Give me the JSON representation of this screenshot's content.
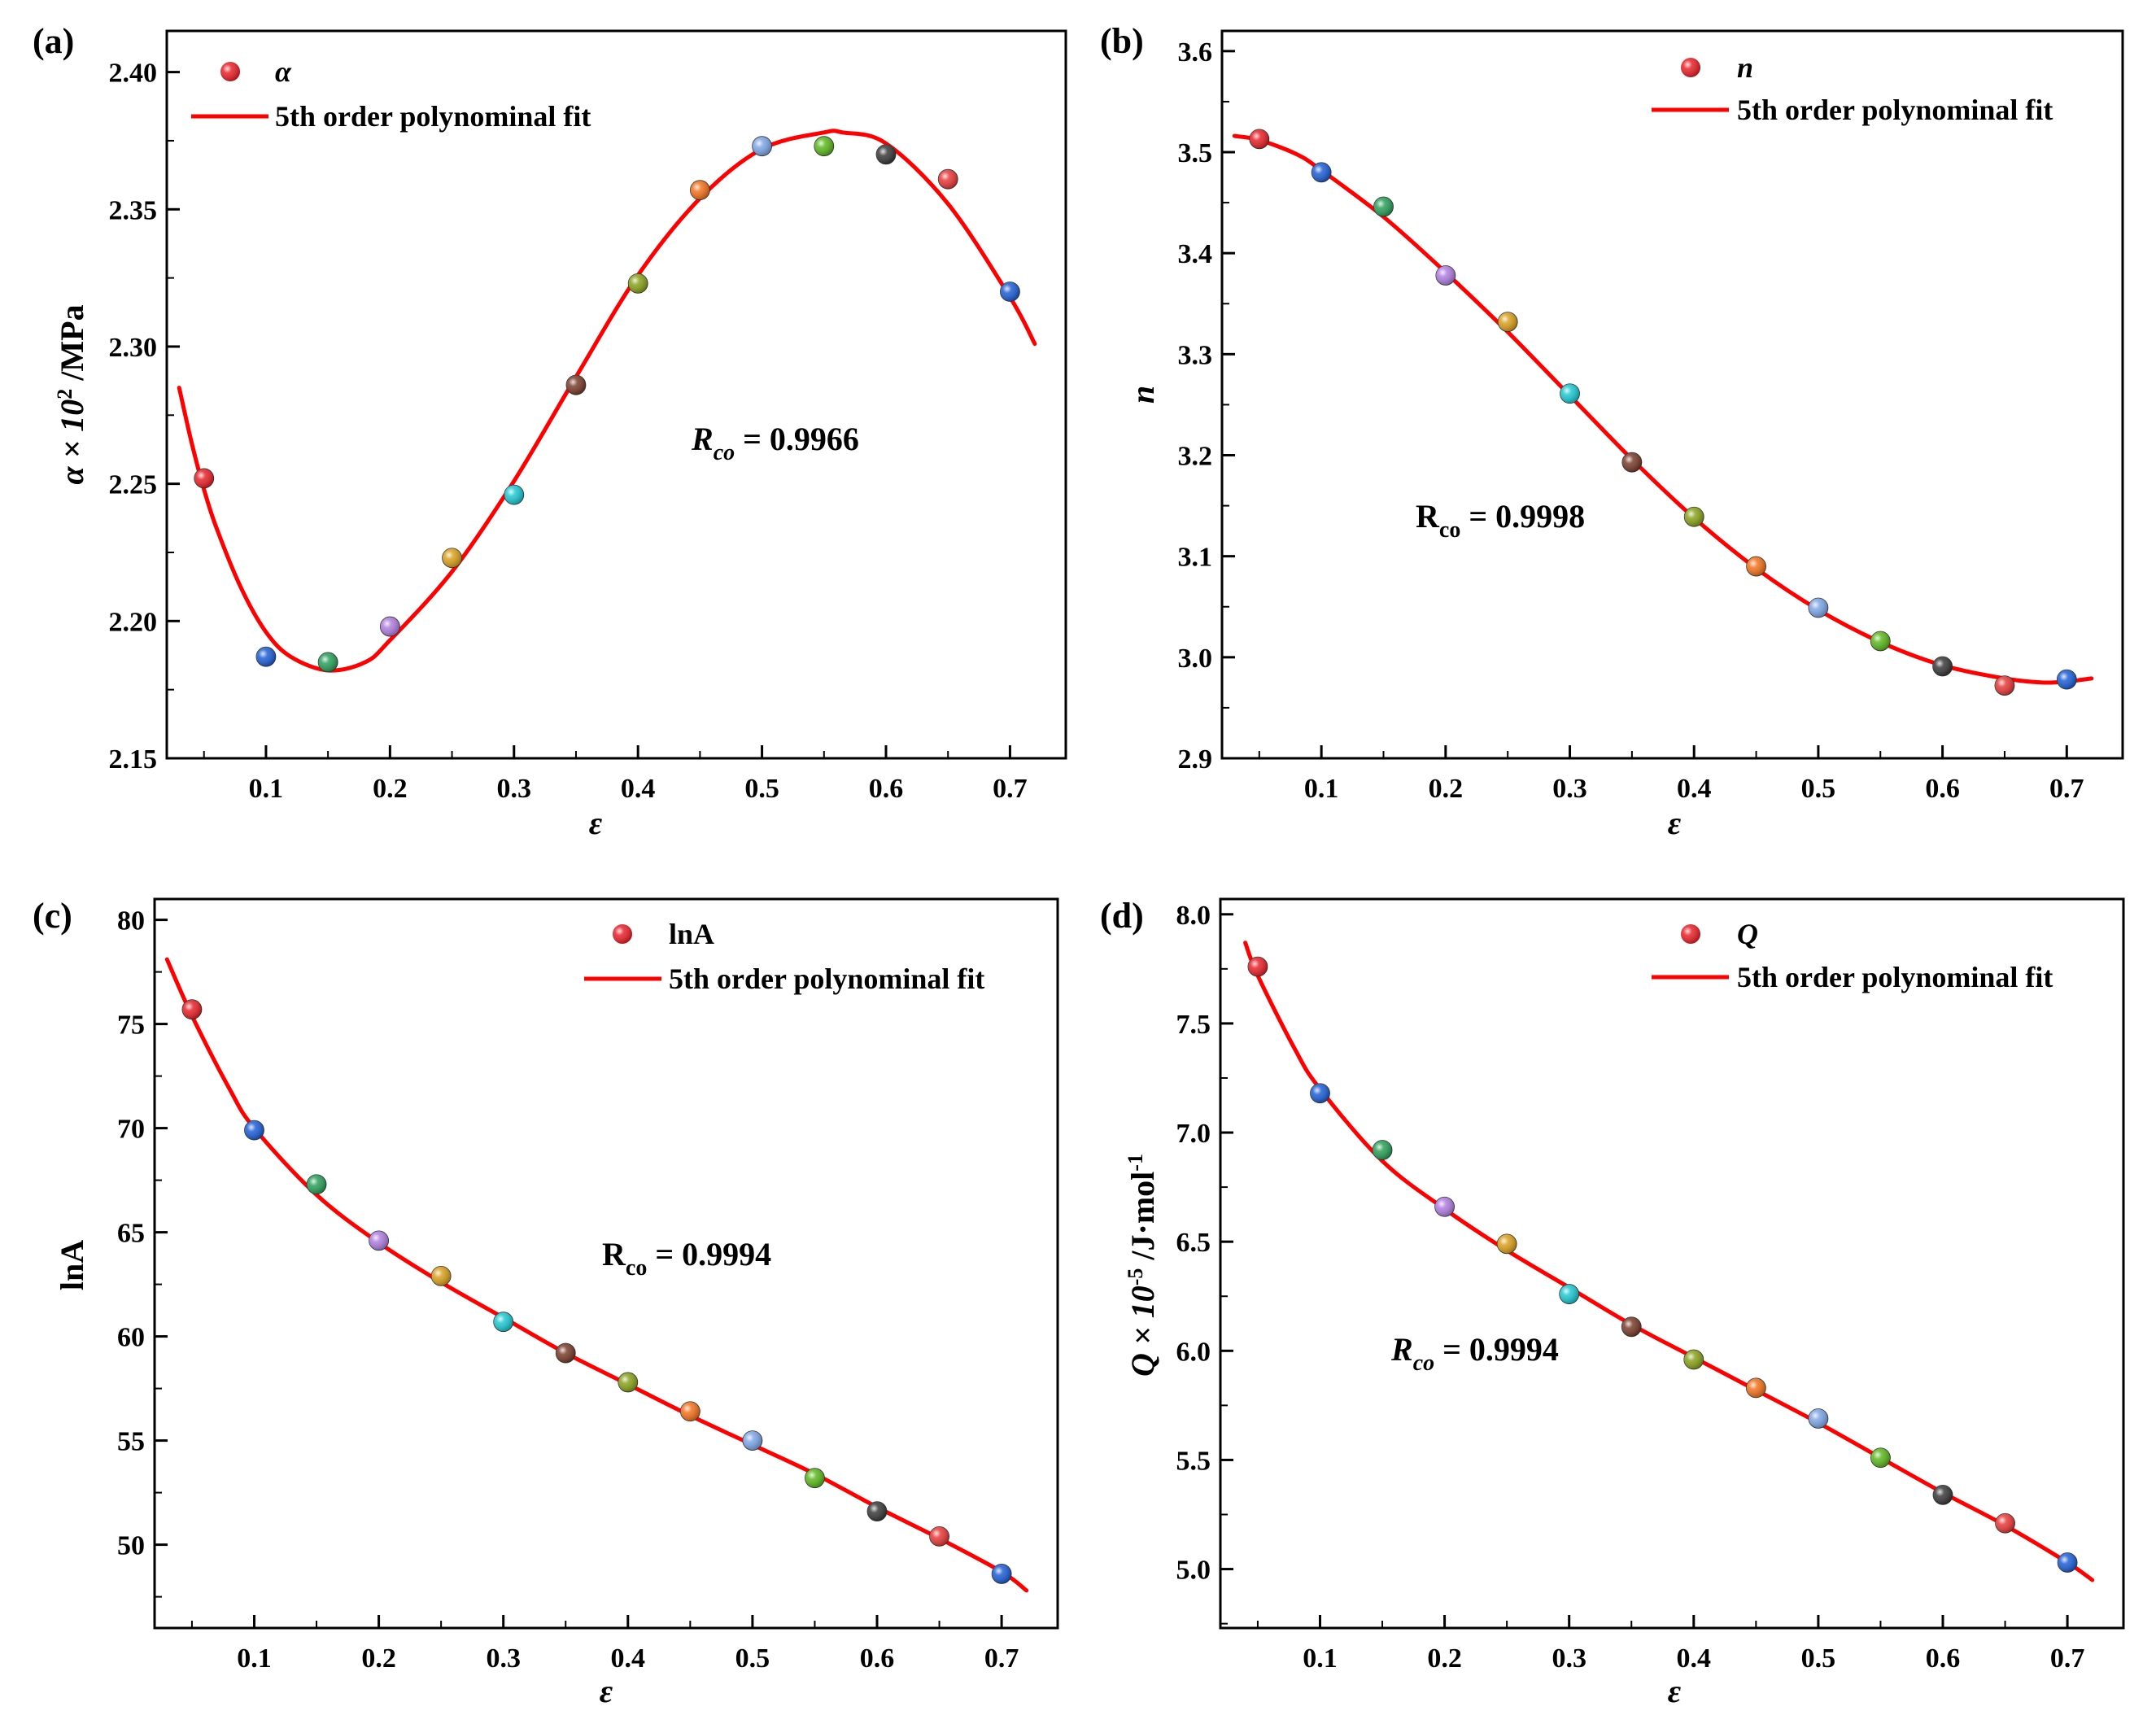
{
  "figure": {
    "point_colors": [
      "#e8232a",
      "#1f5fd6",
      "#2aa05a",
      "#b07ee0",
      "#d9a01e",
      "#1ec8d2",
      "#7a3d2c",
      "#8aa21c",
      "#f2731e",
      "#7ea6e6",
      "#5cb81e",
      "#3a3a3a",
      "#e83a3a",
      "#1f5fd6"
    ],
    "fit_color": "#ff0000"
  },
  "chart_data": [
    {
      "id": "a",
      "type": "scatter",
      "panel_label": "(a)",
      "legend": {
        "marker_label": "α",
        "line_label": "5th order polynominal fit"
      },
      "xlabel": "ε",
      "ylabel": {
        "main": "α × 10",
        "sup": "2",
        "unit": " /MPa"
      },
      "rco": {
        "R": "R",
        "sub": "co",
        "value": " = 0.9966",
        "italic": true
      },
      "xlim": [
        0.02,
        0.745
      ],
      "ylim": [
        2.15,
        2.415
      ],
      "xticks": [
        0.1,
        0.2,
        0.3,
        0.4,
        0.5,
        0.6,
        0.7
      ],
      "xtick_labels": [
        "0.1",
        "0.2",
        "0.3",
        "0.4",
        "0.5",
        "0.6",
        "0.7"
      ],
      "yticks": [
        2.15,
        2.2,
        2.25,
        2.3,
        2.35,
        2.4
      ],
      "ytick_labels": [
        "2.15",
        "2.20",
        "2.25",
        "2.30",
        "2.35",
        "2.40"
      ],
      "x": [
        0.05,
        0.1,
        0.15,
        0.2,
        0.25,
        0.3,
        0.35,
        0.4,
        0.45,
        0.5,
        0.55,
        0.6,
        0.65,
        0.7
      ],
      "y": [
        2.252,
        2.187,
        2.185,
        2.198,
        2.223,
        2.246,
        2.286,
        2.323,
        2.357,
        2.373,
        2.373,
        2.37,
        2.361,
        2.32
      ],
      "fit_x": [
        0.03,
        0.04,
        0.05,
        0.06,
        0.08,
        0.1,
        0.12,
        0.15,
        0.18,
        0.2,
        0.25,
        0.3,
        0.35,
        0.4,
        0.45,
        0.5,
        0.55,
        0.565,
        0.6,
        0.65,
        0.7,
        0.72
      ],
      "fit_y": [
        2.285,
        2.265,
        2.248,
        2.234,
        2.212,
        2.196,
        2.187,
        2.182,
        2.185,
        2.193,
        2.218,
        2.251,
        2.289,
        2.326,
        2.354,
        2.372,
        2.378,
        2.378,
        2.374,
        2.352,
        2.318,
        2.301
      ]
    },
    {
      "id": "b",
      "type": "scatter",
      "panel_label": "(b)",
      "legend": {
        "marker_label": "n",
        "line_label": "5th order polynominal fit"
      },
      "xlabel": "ε",
      "ylabel": {
        "main": "n",
        "sup": "",
        "unit": ""
      },
      "rco": {
        "R": "R",
        "sub": "co",
        "value": " = 0.9998",
        "italic": false
      },
      "xlim": [
        0.02,
        0.745
      ],
      "ylim": [
        2.9,
        3.62
      ],
      "xticks": [
        0.1,
        0.2,
        0.3,
        0.4,
        0.5,
        0.6,
        0.7
      ],
      "xtick_labels": [
        "0.1",
        "0.2",
        "0.3",
        "0.4",
        "0.5",
        "0.6",
        "0.7"
      ],
      "yticks": [
        2.9,
        3.0,
        3.1,
        3.2,
        3.3,
        3.4,
        3.5,
        3.6
      ],
      "ytick_labels": [
        "2.9",
        "3.0",
        "3.1",
        "3.2",
        "3.3",
        "3.4",
        "3.5",
        "3.6"
      ],
      "x": [
        0.05,
        0.1,
        0.15,
        0.2,
        0.25,
        0.3,
        0.35,
        0.4,
        0.45,
        0.5,
        0.55,
        0.6,
        0.65,
        0.7
      ],
      "y": [
        3.513,
        3.48,
        3.446,
        3.378,
        3.332,
        3.261,
        3.193,
        3.139,
        3.09,
        3.049,
        3.016,
        2.991,
        2.972,
        2.978
      ],
      "fit_x": [
        0.03,
        0.05,
        0.08,
        0.1,
        0.15,
        0.2,
        0.25,
        0.3,
        0.35,
        0.4,
        0.45,
        0.5,
        0.55,
        0.6,
        0.65,
        0.68,
        0.7,
        0.72
      ],
      "fit_y": [
        3.516,
        3.512,
        3.498,
        3.482,
        3.436,
        3.381,
        3.322,
        3.259,
        3.196,
        3.138,
        3.088,
        3.047,
        3.015,
        2.992,
        2.979,
        2.975,
        2.976,
        2.979
      ]
    },
    {
      "id": "c",
      "type": "scatter",
      "panel_label": "(c)",
      "legend": {
        "marker_label": "lnA",
        "line_label": "5th order polynominal fit"
      },
      "xlabel": "ε",
      "ylabel": {
        "main": "lnA",
        "sup": "",
        "unit": ""
      },
      "rco": {
        "R": "R",
        "sub": "co",
        "value": " = 0.9994",
        "italic": false
      },
      "xlim": [
        0.02,
        0.745
      ],
      "ylim": [
        46,
        81
      ],
      "xticks": [
        0.1,
        0.2,
        0.3,
        0.4,
        0.5,
        0.6,
        0.7
      ],
      "xtick_labels": [
        "0.1",
        "0.2",
        "0.3",
        "0.4",
        "0.5",
        "0.6",
        "0.7"
      ],
      "yticks": [
        50,
        55,
        60,
        65,
        70,
        75,
        80
      ],
      "ytick_labels": [
        "50",
        "55",
        "60",
        "65",
        "70",
        "75",
        "80"
      ],
      "x": [
        0.05,
        0.1,
        0.15,
        0.2,
        0.25,
        0.3,
        0.35,
        0.4,
        0.45,
        0.5,
        0.55,
        0.6,
        0.65,
        0.7
      ],
      "y": [
        75.7,
        69.9,
        67.3,
        64.6,
        62.9,
        60.7,
        59.2,
        57.8,
        56.4,
        55.0,
        53.2,
        51.6,
        50.4,
        48.6
      ],
      "fit_x": [
        0.03,
        0.05,
        0.08,
        0.1,
        0.15,
        0.2,
        0.25,
        0.3,
        0.35,
        0.4,
        0.45,
        0.5,
        0.55,
        0.6,
        0.65,
        0.7,
        0.72
      ],
      "fit_y": [
        78.1,
        75.4,
        71.9,
        70.0,
        66.8,
        64.5,
        62.6,
        60.9,
        59.2,
        57.7,
        56.2,
        54.8,
        53.4,
        51.8,
        50.3,
        48.7,
        47.8
      ]
    },
    {
      "id": "d",
      "type": "scatter",
      "panel_label": "(d)",
      "legend": {
        "marker_label": "Q",
        "line_label": "5th order polynominal fit"
      },
      "xlabel": "ε",
      "ylabel": {
        "main": "Q × 10",
        "sup": "-5",
        "unit": " /J·mol",
        "sup2": "-1"
      },
      "rco": {
        "R": "R",
        "sub": "co",
        "value": " = 0.9994",
        "italic": true
      },
      "xlim": [
        0.02,
        0.745
      ],
      "ylim": [
        4.73,
        8.07
      ],
      "xticks": [
        0.1,
        0.2,
        0.3,
        0.4,
        0.5,
        0.6,
        0.7
      ],
      "xtick_labels": [
        "0.1",
        "0.2",
        "0.3",
        "0.4",
        "0.5",
        "0.6",
        "0.7"
      ],
      "yticks": [
        5.0,
        5.5,
        6.0,
        6.5,
        7.0,
        7.5,
        8.0
      ],
      "ytick_labels": [
        "5.0",
        "5.5",
        "6.0",
        "6.5",
        "7.0",
        "7.5",
        "8.0"
      ],
      "x": [
        0.05,
        0.1,
        0.15,
        0.2,
        0.25,
        0.3,
        0.35,
        0.4,
        0.45,
        0.5,
        0.55,
        0.6,
        0.65,
        0.7
      ],
      "y": [
        7.76,
        7.18,
        6.92,
        6.66,
        6.49,
        6.26,
        6.11,
        5.96,
        5.83,
        5.69,
        5.51,
        5.34,
        5.21,
        5.03
      ],
      "fit_x": [
        0.04,
        0.05,
        0.08,
        0.1,
        0.15,
        0.2,
        0.25,
        0.3,
        0.35,
        0.4,
        0.45,
        0.5,
        0.55,
        0.6,
        0.65,
        0.7,
        0.72
      ],
      "fit_y": [
        7.87,
        7.72,
        7.38,
        7.2,
        6.87,
        6.65,
        6.46,
        6.29,
        6.12,
        5.97,
        5.82,
        5.67,
        5.51,
        5.35,
        5.2,
        5.03,
        4.95
      ]
    }
  ]
}
